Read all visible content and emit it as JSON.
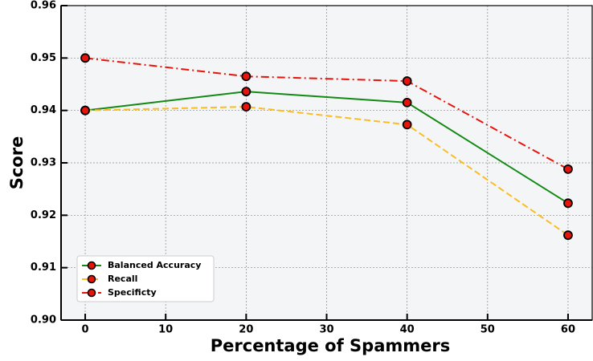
{
  "chart_data": {
    "type": "line",
    "x_label": "Percentage of Spammers",
    "y_label": "Score",
    "x": [
      0,
      20,
      40,
      60
    ],
    "series": [
      {
        "name": "Balanced Accuracy",
        "color": "#138a13",
        "dash": "solid",
        "values": [
          0.94,
          0.9436,
          0.9415,
          0.9223
        ]
      },
      {
        "name": "Recall",
        "color": "#fbbc24",
        "dash": "dashed",
        "values": [
          0.94,
          0.9407,
          0.9373,
          0.9162
        ]
      },
      {
        "name": "Specificty",
        "color": "#e8140c",
        "dash": "dashdot",
        "values": [
          0.95,
          0.9465,
          0.9456,
          0.9288
        ]
      }
    ],
    "marker_color": "#e8140c",
    "xlim": [
      -3,
      63
    ],
    "xticks": [
      0,
      10,
      20,
      30,
      40,
      50,
      60
    ],
    "ylim": [
      0.9,
      0.96
    ],
    "yticks": [
      {
        "value": 0.9,
        "label": "0.90"
      },
      0.91,
      0.92,
      0.93,
      0.94,
      0.95,
      0.96
    ],
    "grid": true,
    "legend": "lower left"
  }
}
